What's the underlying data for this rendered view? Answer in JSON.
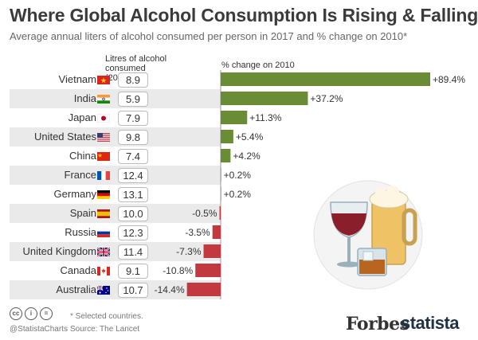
{
  "title": "Where Global Alcohol Consumption Is Rising & Falling",
  "subtitle": "Average annual liters of alcohol consumed per person in 2017 and % change on 2010*",
  "header_litres": "Litres of alcohol consumed (2017)",
  "header_change": "% change on 2010",
  "colors": {
    "positive": "#6a8c35",
    "negative": "#c2393f",
    "row_alt": "#eaeaea"
  },
  "chart_data": {
    "type": "bar",
    "orientation": "horizontal",
    "categories": [
      "Vietnam",
      "India",
      "Japan",
      "United States",
      "China",
      "France",
      "Germany",
      "Spain",
      "Russia",
      "United Kingdom",
      "Canada",
      "Australia"
    ],
    "flags": [
      "vietnam-flag-icon",
      "india-flag-icon",
      "japan-flag-icon",
      "us-flag-icon",
      "china-flag-icon",
      "france-flag-icon",
      "germany-flag-icon",
      "spain-flag-icon",
      "russia-flag-icon",
      "uk-flag-icon",
      "canada-flag-icon",
      "australia-flag-icon"
    ],
    "litres_2017": [
      "8.9",
      "5.9",
      "7.9",
      "9.8",
      "7.4",
      "12.4",
      "13.1",
      "10.0",
      "12.3",
      "11.4",
      "9.1",
      "10.7"
    ],
    "change_values": [
      89.4,
      37.2,
      11.3,
      5.4,
      4.2,
      0.2,
      0.2,
      -0.5,
      -3.5,
      -7.3,
      -10.8,
      -14.4
    ],
    "change_labels": [
      "+89.4%",
      "+37.2%",
      "+11.3%",
      "+5.4%",
      "+4.2%",
      "+0.2%",
      "+0.2%",
      "-0.5%",
      "-3.5%",
      "-7.3%",
      "-10.8%",
      "-14.4%"
    ]
  },
  "footer": {
    "note": "* Selected countries.",
    "handle": "@StatistaCharts",
    "source": "Source: The Lancet",
    "cc_icon": "cc",
    "brand_forbes": "Forbes",
    "brand_statista": "statista"
  }
}
